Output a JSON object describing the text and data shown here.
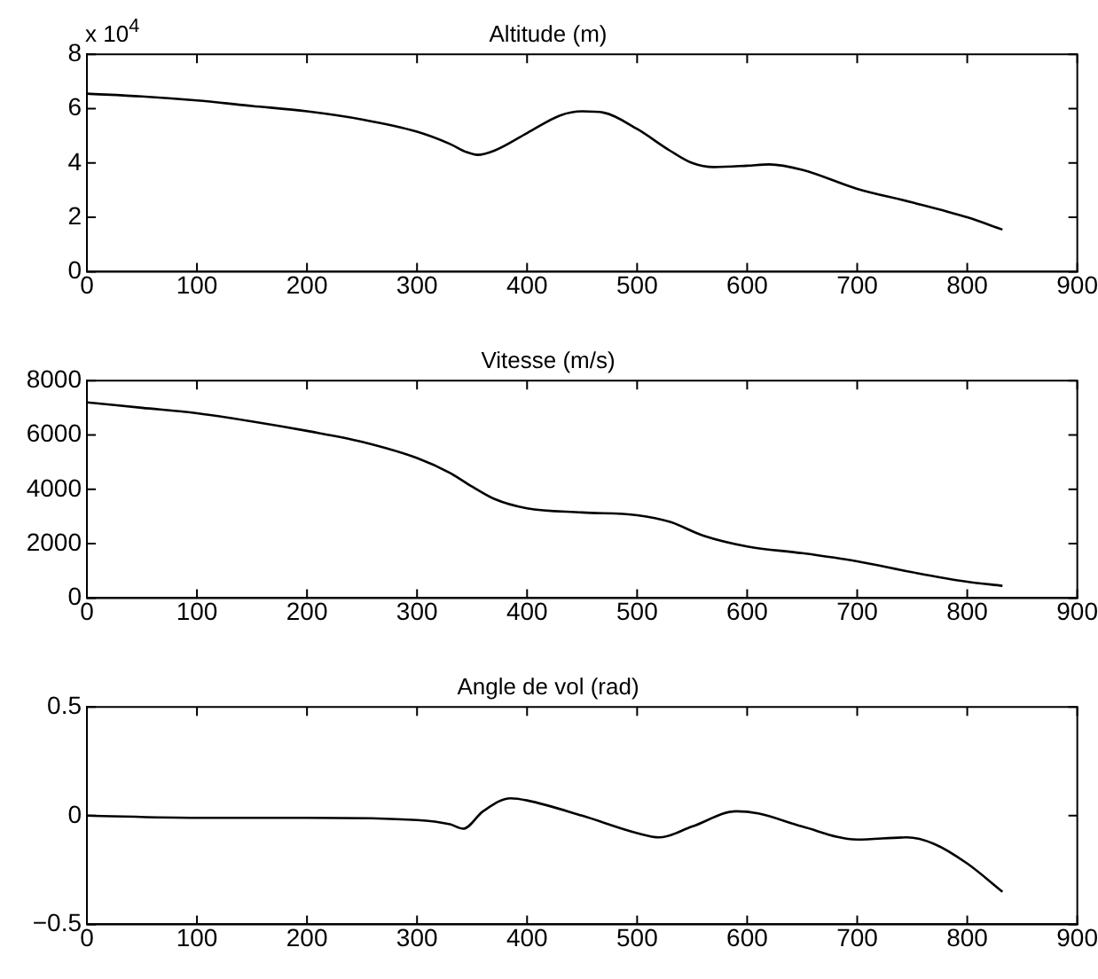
{
  "chart_data": [
    {
      "type": "line",
      "title": "Altitude (m)",
      "annotations": [
        "x 10$^{4}$"
      ],
      "grid": false,
      "legend": false,
      "xlim": [
        0,
        900
      ],
      "xticks": [
        0,
        100,
        200,
        300,
        400,
        500,
        600,
        700,
        800,
        900
      ],
      "ylim": [
        0,
        8
      ],
      "yticks": [
        0,
        2,
        4,
        6,
        8
      ],
      "x": [
        0,
        50,
        100,
        150,
        200,
        250,
        300,
        330,
        345,
        355,
        370,
        400,
        430,
        450,
        470,
        500,
        530,
        550,
        570,
        600,
        620,
        650,
        700,
        750,
        800,
        832
      ],
      "series": [
        {
          "color": "#000000",
          "values": [
            6.55,
            6.45,
            6.3,
            6.1,
            5.9,
            5.6,
            5.15,
            4.7,
            4.4,
            4.3,
            4.45,
            5.1,
            5.75,
            5.9,
            5.85,
            5.25,
            4.45,
            4.0,
            3.85,
            3.9,
            3.95,
            3.75,
            3.05,
            2.55,
            2.0,
            1.55
          ]
        }
      ]
    },
    {
      "type": "line",
      "title": "Vitesse (m/s)",
      "grid": false,
      "legend": false,
      "xlim": [
        0,
        900
      ],
      "xticks": [
        0,
        100,
        200,
        300,
        400,
        500,
        600,
        700,
        800,
        900
      ],
      "ylim": [
        0,
        8000
      ],
      "yticks": [
        0,
        2000,
        4000,
        6000,
        8000
      ],
      "x": [
        0,
        50,
        100,
        150,
        200,
        250,
        300,
        330,
        350,
        370,
        400,
        450,
        500,
        530,
        560,
        600,
        650,
        700,
        750,
        800,
        832
      ],
      "series": [
        {
          "color": "#000000",
          "values": [
            7200,
            7000,
            6800,
            6500,
            6150,
            5750,
            5150,
            4600,
            4100,
            3650,
            3300,
            3150,
            3050,
            2800,
            2300,
            1900,
            1650,
            1350,
            950,
            600,
            450
          ]
        }
      ]
    },
    {
      "type": "line",
      "title": "Angle de vol (rad)",
      "grid": false,
      "legend": false,
      "xlim": [
        0,
        900
      ],
      "xticks": [
        0,
        100,
        200,
        300,
        400,
        500,
        600,
        700,
        800,
        900
      ],
      "ylim": [
        -0.5,
        0.5
      ],
      "yticks": [
        {
          "value": -0.5,
          "label": "−0.5"
        },
        0,
        0.5
      ],
      "x": [
        0,
        100,
        200,
        300,
        330,
        342,
        360,
        385,
        400,
        450,
        500,
        520,
        550,
        590,
        610,
        650,
        700,
        745,
        770,
        800,
        832
      ],
      "series": [
        {
          "color": "#000000",
          "values": [
            0,
            -0.01,
            -0.01,
            -0.02,
            -0.04,
            -0.06,
            0.02,
            0.08,
            0.07,
            0,
            -0.08,
            -0.1,
            -0.05,
            0.02,
            0.01,
            -0.05,
            -0.11,
            -0.1,
            -0.13,
            -0.22,
            -0.35
          ]
        }
      ]
    }
  ]
}
